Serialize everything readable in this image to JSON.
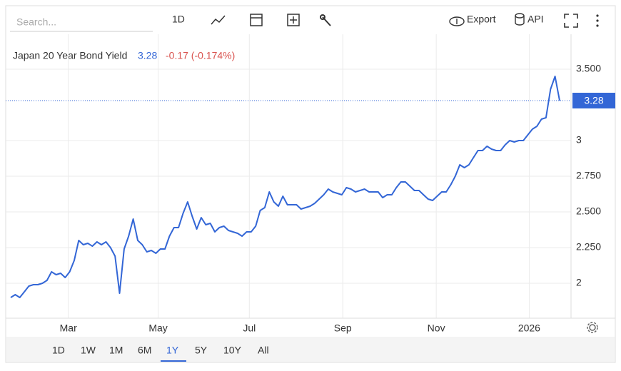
{
  "ui": {
    "search_placeholder": "Search...",
    "interval": "1D",
    "export": "Export",
    "api": "API",
    "ranges": [
      "1D",
      "1W",
      "1M",
      "6M",
      "1Y",
      "5Y",
      "10Y",
      "All"
    ],
    "active_range": 4
  },
  "chart_data": {
    "type": "line",
    "title": "Japan 20 Year Bond Yield",
    "change": "-0.17 (-0.174%)",
    "series": [
      {
        "name": "Japan 20 Year Bond Yield",
        "color": "#3366d6",
        "values": [
          1.9,
          1.92,
          1.9,
          1.94,
          1.98,
          1.99,
          1.99,
          2.0,
          2.02,
          2.08,
          2.06,
          2.07,
          2.04,
          2.08,
          2.16,
          2.3,
          2.27,
          2.28,
          2.26,
          2.29,
          2.27,
          2.29,
          2.25,
          2.19,
          1.93,
          2.24,
          2.33,
          2.45,
          2.3,
          2.27,
          2.22,
          2.23,
          2.21,
          2.24,
          2.24,
          2.33,
          2.39,
          2.39,
          2.49,
          2.57,
          2.47,
          2.38,
          2.46,
          2.41,
          2.42,
          2.36,
          2.39,
          2.4,
          2.37,
          2.36,
          2.35,
          2.33,
          2.36,
          2.36,
          2.4,
          2.51,
          2.53,
          2.64,
          2.57,
          2.54,
          2.61,
          2.55,
          2.55,
          2.55,
          2.52,
          2.53,
          2.54,
          2.56,
          2.59,
          2.62,
          2.66,
          2.64,
          2.63,
          2.62,
          2.67,
          2.66,
          2.64,
          2.65,
          2.66,
          2.64,
          2.64,
          2.64,
          2.6,
          2.62,
          2.62,
          2.67,
          2.71,
          2.71,
          2.68,
          2.65,
          2.65,
          2.62,
          2.59,
          2.58,
          2.61,
          2.64,
          2.64,
          2.69,
          2.75,
          2.83,
          2.81,
          2.83,
          2.88,
          2.93,
          2.93,
          2.96,
          2.94,
          2.93,
          2.93,
          2.97,
          3.0,
          2.99,
          3.0,
          3.0,
          3.04,
          3.08,
          3.1,
          3.15,
          3.16,
          3.36,
          3.45,
          3.28
        ]
      }
    ],
    "xlim": [
      0,
      121
    ],
    "xticks": [
      {
        "value": 12.7,
        "label": "Mar"
      },
      {
        "value": 32.5,
        "label": "May"
      },
      {
        "value": 52.6,
        "label": "Jul"
      },
      {
        "value": 73.2,
        "label": "Sep"
      },
      {
        "value": 93.8,
        "label": "Nov"
      },
      {
        "value": 114.3,
        "label": "2026"
      }
    ],
    "ylim": [
      1.755,
      3.745
    ],
    "yticks": [
      {
        "value": 3.5,
        "label": "3.500"
      },
      3,
      {
        "value": 2.75,
        "label": "2.750"
      },
      {
        "value": 2.5,
        "label": "2.500"
      },
      {
        "value": 2.25,
        "label": "2.250"
      },
      2
    ],
    "grid": true
  }
}
